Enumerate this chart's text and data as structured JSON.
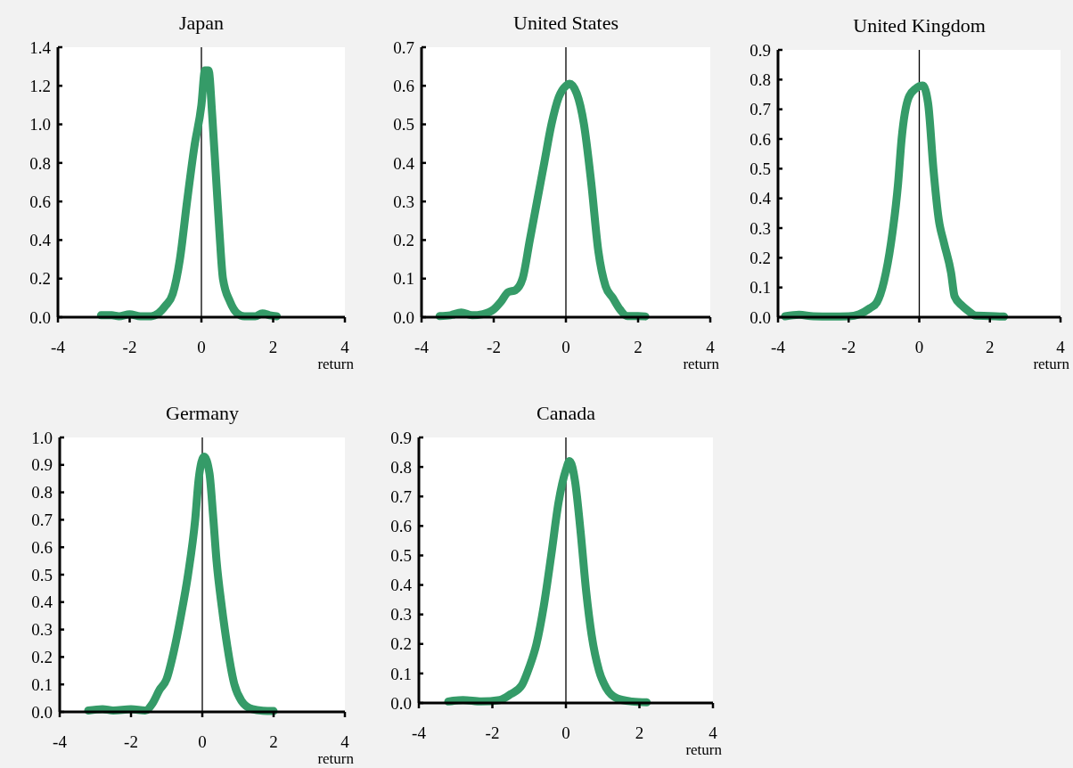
{
  "chart_data": [
    {
      "type": "line",
      "title": "Japan",
      "xlabel": "return",
      "xlim": [
        -4,
        4
      ],
      "xticks": [
        -4,
        -2,
        0,
        2,
        4
      ],
      "ylim": [
        0,
        1.4
      ],
      "yticks": [
        {
          "value": 0,
          "label": "0.0"
        },
        {
          "value": 0.2,
          "label": "0.2"
        },
        {
          "value": 0.4,
          "label": "0.4"
        },
        {
          "value": 0.6,
          "label": "0.6"
        },
        {
          "value": 0.8,
          "label": "0.8"
        },
        {
          "value": 1,
          "label": "1.0"
        },
        {
          "value": 1.2,
          "label": "1.2"
        },
        {
          "value": 1.4,
          "label": "1.4"
        }
      ],
      "ref_lines": [
        {
          "axis": "x",
          "value": 0,
          "color": "#000000"
        }
      ],
      "grid": false,
      "line_style": "solid",
      "marker": "none",
      "series": [
        {
          "color": "#359b68",
          "x": [
            -2.8,
            -2.5,
            -2.3,
            -2.0,
            -1.7,
            -1.4,
            -1.2,
            -1.0,
            -0.8,
            -0.6,
            -0.4,
            -0.2,
            0,
            0.1,
            0.2,
            0.3,
            0.4,
            0.5,
            0.6,
            0.8,
            1.0,
            1.2,
            1.5,
            1.7,
            1.9,
            2.1
          ],
          "values": [
            0.01,
            0.01,
            0.005,
            0.015,
            0.005,
            0.005,
            0.02,
            0.06,
            0.12,
            0.3,
            0.6,
            0.88,
            1.1,
            1.28,
            1.28,
            1.05,
            0.75,
            0.45,
            0.2,
            0.08,
            0.02,
            0.005,
            0.005,
            0.02,
            0.01,
            0.005
          ]
        }
      ]
    },
    {
      "type": "line",
      "title": "United States",
      "xlabel": "return",
      "xlim": [
        -4,
        4
      ],
      "xticks": [
        -4,
        -2,
        0,
        2,
        4
      ],
      "ylim": [
        0,
        0.7
      ],
      "yticks": [
        {
          "value": 0,
          "label": "0.0"
        },
        0.1,
        0.2,
        0.3,
        0.4,
        0.5,
        0.6,
        0.7
      ],
      "ref_lines": [
        {
          "axis": "x",
          "value": 0,
          "color": "#000000"
        }
      ],
      "grid": false,
      "line_style": "solid",
      "marker": "none",
      "series": [
        {
          "color": "#359b68",
          "x": [
            -3.5,
            -3.2,
            -2.9,
            -2.6,
            -2.3,
            -2.0,
            -1.8,
            -1.6,
            -1.4,
            -1.2,
            -1.0,
            -0.8,
            -0.6,
            -0.4,
            -0.2,
            0,
            0.1,
            0.3,
            0.5,
            0.7,
            0.9,
            1.1,
            1.3,
            1.5,
            1.7,
            2.0,
            2.2
          ],
          "values": [
            0.003,
            0.005,
            0.012,
            0.005,
            0.008,
            0.02,
            0.04,
            0.065,
            0.07,
            0.1,
            0.2,
            0.3,
            0.4,
            0.5,
            0.57,
            0.6,
            0.605,
            0.58,
            0.5,
            0.35,
            0.17,
            0.08,
            0.05,
            0.02,
            0.003,
            0.003,
            0.002
          ]
        }
      ]
    },
    {
      "type": "line",
      "title": "United Kingdom",
      "xlabel": "return",
      "xlim": [
        -4,
        4
      ],
      "xticks": [
        -4,
        -2,
        0,
        2,
        4
      ],
      "ylim": [
        0,
        0.9
      ],
      "yticks": [
        {
          "value": 0,
          "label": "0.0"
        },
        0.1,
        0.2,
        0.3,
        0.4,
        0.5,
        0.6,
        0.7,
        0.8,
        0.9
      ],
      "ref_lines": [
        {
          "axis": "x",
          "value": 0,
          "color": "#000000"
        }
      ],
      "grid": false,
      "line_style": "solid",
      "marker": "none",
      "series": [
        {
          "color": "#359b68",
          "x": [
            -3.8,
            -3.4,
            -3.0,
            -2.5,
            -2.0,
            -1.7,
            -1.4,
            -1.2,
            -1.0,
            -0.8,
            -0.6,
            -0.5,
            -0.3,
            -0.1,
            0.1,
            0.25,
            0.4,
            0.55,
            0.7,
            0.9,
            1.0,
            1.2,
            1.4,
            1.6,
            2.0,
            2.4
          ],
          "values": [
            0.003,
            0.008,
            0.003,
            0.002,
            0.003,
            0.01,
            0.03,
            0.05,
            0.12,
            0.25,
            0.45,
            0.6,
            0.74,
            0.77,
            0.78,
            0.72,
            0.5,
            0.33,
            0.25,
            0.15,
            0.07,
            0.04,
            0.02,
            0.005,
            0.004,
            0.002
          ]
        }
      ]
    },
    {
      "type": "line",
      "title": "Germany",
      "xlabel": "return",
      "xlim": [
        -4,
        4
      ],
      "xticks": [
        -4,
        -2,
        0,
        2,
        4
      ],
      "ylim": [
        0,
        1.0
      ],
      "yticks": [
        {
          "value": 0,
          "label": "0.0"
        },
        0.1,
        0.2,
        0.3,
        0.4,
        0.5,
        0.6,
        0.7,
        0.8,
        0.9,
        {
          "value": 1,
          "label": "1.0"
        }
      ],
      "ref_lines": [
        {
          "axis": "x",
          "value": 0,
          "color": "#000000"
        }
      ],
      "grid": false,
      "line_style": "solid",
      "marker": "none",
      "series": [
        {
          "color": "#359b68",
          "x": [
            -3.2,
            -2.8,
            -2.5,
            -2.0,
            -1.6,
            -1.4,
            -1.2,
            -1.0,
            -0.8,
            -0.6,
            -0.4,
            -0.2,
            -0.1,
            0.05,
            0.2,
            0.3,
            0.4,
            0.55,
            0.7,
            0.9,
            1.1,
            1.4,
            1.7,
            2.0
          ],
          "values": [
            0.005,
            0.01,
            0.005,
            0.01,
            0.005,
            0.03,
            0.08,
            0.12,
            0.22,
            0.35,
            0.5,
            0.7,
            0.85,
            0.93,
            0.87,
            0.72,
            0.55,
            0.38,
            0.24,
            0.1,
            0.04,
            0.01,
            0.004,
            0.003
          ]
        }
      ]
    },
    {
      "type": "line",
      "title": "Canada",
      "xlabel": "return",
      "xlim": [
        -4,
        4
      ],
      "xticks": [
        -4,
        -2,
        0,
        2,
        4
      ],
      "ylim": [
        0,
        0.9
      ],
      "yticks": [
        {
          "value": 0,
          "label": "0.0"
        },
        0.1,
        0.2,
        0.3,
        0.4,
        0.5,
        0.6,
        0.7,
        0.8,
        0.9
      ],
      "ref_lines": [
        {
          "axis": "x",
          "value": 0,
          "color": "#000000"
        }
      ],
      "grid": false,
      "line_style": "solid",
      "marker": "none",
      "series": [
        {
          "color": "#359b68",
          "x": [
            -3.2,
            -2.8,
            -2.3,
            -1.8,
            -1.5,
            -1.2,
            -1.0,
            -0.8,
            -0.6,
            -0.4,
            -0.2,
            0,
            0.1,
            0.25,
            0.4,
            0.55,
            0.7,
            0.9,
            1.1,
            1.4,
            1.8,
            2.2
          ],
          "values": [
            0.005,
            0.01,
            0.005,
            0.01,
            0.03,
            0.06,
            0.12,
            0.2,
            0.33,
            0.5,
            0.68,
            0.79,
            0.82,
            0.75,
            0.58,
            0.38,
            0.23,
            0.11,
            0.05,
            0.015,
            0.005,
            0.002
          ]
        }
      ]
    }
  ]
}
